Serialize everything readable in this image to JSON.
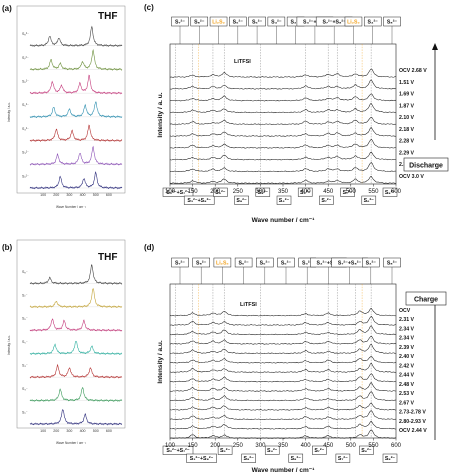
{
  "panels": {
    "a": {
      "label": "(a)",
      "solvent": "THF",
      "rows": [
        "S₈²⁻",
        "S₇²⁻",
        "S₆²⁻",
        "S₅²⁻",
        "S₄²⁻",
        "S₃²⁻",
        "S₂²⁻"
      ],
      "ylabel": "Intensity / a.u.",
      "xlabel": "Wave Number / cm⁻¹",
      "ticks": [
        "100",
        "200",
        "300",
        "400",
        "500",
        "600"
      ]
    },
    "b": {
      "label": "(b)",
      "solvent": "THF",
      "rows": [
        "S₈⁻",
        "S₇⁻",
        "S₆⁻",
        "S₅⁻",
        "S₄⁻",
        "S₃⁻",
        "S₂⁻"
      ],
      "ylabel": "Intensity / a.u.",
      "xlabel": "Wave Number / cm⁻¹",
      "ticks": [
        "100",
        "200",
        "300",
        "400",
        "500",
        "600"
      ]
    },
    "c": {
      "label": "(c)",
      "ylabel": "Intensity / a. u.",
      "xlabel": "Wave number / cm⁻¹",
      "xticks": [
        "100",
        "150",
        "200",
        "250",
        "300",
        "350",
        "400",
        "450",
        "500",
        "550",
        "600"
      ],
      "top_labels": [
        "S₇²⁻",
        "S₈²⁻",
        "Li₂S₂",
        "S₆²⁻",
        "S₆²⁻",
        "S₄²⁻",
        "S₃²⁻",
        "S₄²⁻+S₆²⁻",
        "S₇²⁻+S₈²⁻",
        "Li₂S₂",
        "S₄²⁻",
        "S₈²⁻"
      ],
      "bottom_labels": [
        "S₂²⁻+S₇²⁻",
        "S₃²⁻+S₈²⁻",
        "S₅²⁻",
        "S₈²⁻",
        "S₈²⁻",
        "S₄²⁻",
        "S₅²⁻",
        "S₇²⁻",
        "S₇²⁻",
        "S₆²⁻",
        "S₈²⁻"
      ],
      "note": "LiTFSI",
      "voltages": [
        "OCV 2.68 V",
        "1.51 V",
        "1.69 V",
        "1.87 V",
        "2.10 V",
        "2.18 V",
        "2.28 V",
        "2.29 V",
        "2.33 V",
        "OCV 3.0 V"
      ],
      "direction": "Discharge"
    },
    "d": {
      "label": "(d)",
      "ylabel": "Intensity / a.u.",
      "xlabel": "Wave number / cm⁻¹",
      "xticks": [
        "100",
        "150",
        "200",
        "250",
        "300",
        "350",
        "400",
        "450",
        "500",
        "550",
        "600"
      ],
      "top_labels": [
        "S₇²⁻",
        "S₈²⁻",
        "Li₂S₂",
        "S₆²⁻",
        "S₅²⁻",
        "S₅²⁻",
        "S₃²⁻",
        "S₄²⁻+S₆²⁻",
        "S₇²⁻+S₈²⁻",
        "S₄²⁻",
        "S₈²⁻"
      ],
      "bottom_labels": [
        "S₂²⁻+S₇²⁻",
        "S₃²⁻+S₈²⁻",
        "S₅²⁻",
        "S₈²⁻",
        "S₄²⁻",
        "S₈²⁻",
        "S₇²⁻",
        "S₇²⁻",
        "S₆²⁻",
        "S₈²⁻"
      ],
      "note": "LiTFSI",
      "voltages": [
        "OCV",
        "2.31 V",
        "2.34 V",
        "2.34 V",
        "2.39 V",
        "2.40 V",
        "2.42 V",
        "2.44 V",
        "2.48 V",
        "2.53 V",
        "2.67 V",
        "2.73-2.78 V",
        "2.80-2.93 V",
        "OCV 2.44 V"
      ],
      "direction": "Charge"
    }
  },
  "chart_data": [
    {
      "type": "line",
      "panel": "a",
      "xlim": [
        0,
        700
      ],
      "series": [
        {
          "name": "S₈²⁻",
          "color": "#444444",
          "peaks": [
            [
              150,
              0.5
            ],
            [
              220,
              0.4
            ],
            [
              470,
              1.0
            ]
          ]
        },
        {
          "name": "S₇²⁻",
          "color": "#6b8f3a",
          "peaks": [
            [
              160,
              0.5
            ],
            [
              230,
              0.3
            ],
            [
              400,
              0.4
            ],
            [
              480,
              1.0
            ]
          ]
        },
        {
          "name": "S₆²⁻",
          "color": "#c43b7c",
          "peaks": [
            [
              170,
              0.6
            ],
            [
              240,
              0.4
            ],
            [
              380,
              0.5
            ],
            [
              450,
              0.9
            ]
          ]
        },
        {
          "name": "S₅²⁻",
          "color": "#2e8fb0",
          "peaks": [
            [
              180,
              0.5
            ],
            [
              300,
              0.4
            ],
            [
              420,
              0.6
            ],
            [
              500,
              0.8
            ]
          ]
        },
        {
          "name": "S₄²⁻",
          "color": "#b33030",
          "peaks": [
            [
              200,
              0.6
            ],
            [
              320,
              0.5
            ],
            [
              450,
              0.8
            ]
          ]
        },
        {
          "name": "S₃²⁻",
          "color": "#8a4fb5",
          "peaks": [
            [
              210,
              0.5
            ],
            [
              380,
              0.6
            ],
            [
              480,
              0.9
            ]
          ]
        },
        {
          "name": "S₂²⁻",
          "color": "#2a2a7a",
          "peaks": [
            [
              230,
              0.6
            ],
            [
              410,
              0.5
            ],
            [
              500,
              0.8
            ]
          ]
        }
      ]
    },
    {
      "type": "line",
      "panel": "b",
      "xlim": [
        0,
        700
      ],
      "series": [
        {
          "name": "S₈⁻",
          "color": "#444444",
          "peaks": [
            [
              150,
              0.3
            ],
            [
              470,
              1.0
            ]
          ]
        },
        {
          "name": "S₇⁻",
          "color": "#c4a53a",
          "peaks": [
            [
              200,
              0.3
            ],
            [
              480,
              1.0
            ]
          ]
        },
        {
          "name": "S₆⁻",
          "color": "#c43b7c",
          "peaks": [
            [
              170,
              0.6
            ],
            [
              260,
              0.5
            ],
            [
              410,
              0.5
            ]
          ]
        },
        {
          "name": "S₅⁻",
          "color": "#2eb0a0",
          "peaks": [
            [
              190,
              0.5
            ],
            [
              350,
              0.7
            ],
            [
              470,
              0.4
            ]
          ]
        },
        {
          "name": "S₄⁻",
          "color": "#b33030",
          "peaks": [
            [
              210,
              0.6
            ],
            [
              300,
              0.5
            ],
            [
              460,
              0.5
            ]
          ]
        },
        {
          "name": "S₃⁻",
          "color": "#3a9a5a",
          "peaks": [
            [
              230,
              0.6
            ],
            [
              400,
              0.7
            ]
          ]
        },
        {
          "name": "S₂⁻",
          "color": "#2a2a7a",
          "peaks": [
            [
              250,
              0.8
            ],
            [
              420,
              0.5
            ]
          ]
        }
      ]
    },
    {
      "type": "line",
      "panel": "c",
      "xlim": [
        100,
        600
      ],
      "series_count": 10,
      "common_peaks": [
        [
          150,
          0.3
        ],
        [
          195,
          0.25
        ],
        [
          220,
          0.5
        ],
        [
          400,
          0.35
        ],
        [
          450,
          0.3
        ],
        [
          470,
          0.35
        ],
        [
          510,
          0.45
        ],
        [
          545,
          1.0
        ]
      ]
    },
    {
      "type": "line",
      "panel": "d",
      "xlim": [
        100,
        600
      ],
      "series_count": 14,
      "common_peaks": [
        [
          150,
          0.4
        ],
        [
          195,
          0.3
        ],
        [
          220,
          0.5
        ],
        [
          400,
          0.3
        ],
        [
          450,
          0.3
        ],
        [
          520,
          0.5
        ],
        [
          545,
          1.0
        ]
      ]
    }
  ]
}
